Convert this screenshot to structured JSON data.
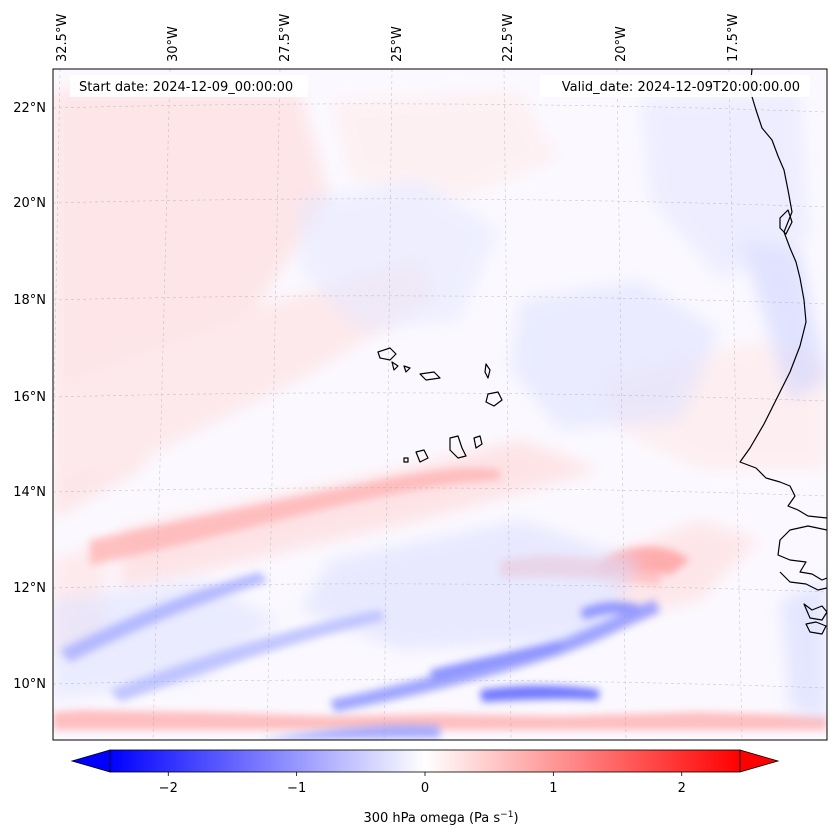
{
  "map": {
    "start_label": "Start date: 2024-12-09_00:00:00",
    "valid_label": "Valid_date: 2024-12-09T20:00:00.00",
    "lon_ticks": [
      "32.5°W",
      "30°W",
      "27.5°W",
      "25°W",
      "22.5°W",
      "20°W",
      "17.5°W"
    ],
    "lat_ticks": [
      "22°N",
      "20°N",
      "18°N",
      "16°N",
      "14°N",
      "12°N",
      "10°N"
    ],
    "gridlines": true,
    "projection": "Lambert conformal"
  },
  "colorbar": {
    "label_main": "300 hPa omega (Pa s",
    "label_exp": "−1",
    "label_close": ")",
    "ticks": [
      "−2",
      "−1",
      "0",
      "1",
      "2"
    ],
    "tick_values": [
      -2,
      -1,
      0,
      1,
      2
    ],
    "range": [
      -2.75,
      2.75
    ],
    "colormap": "bwr",
    "color_min": "#0000ff",
    "color_mid": "#ffffff",
    "color_max": "#ff0000"
  }
}
